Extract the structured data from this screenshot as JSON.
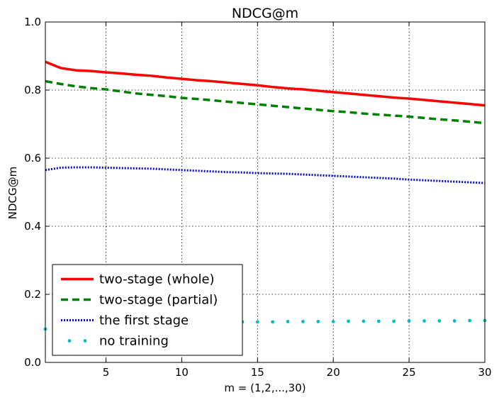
{
  "chart_data": {
    "type": "line",
    "title": "NDCG@m",
    "xlabel": "m = (1,2,...,30)",
    "ylabel": "NDCG@m",
    "xlim": [
      1,
      30
    ],
    "ylim": [
      0.0,
      1.0
    ],
    "grid": true,
    "legend_position": "lower-left",
    "x": [
      1,
      2,
      3,
      4,
      5,
      6,
      7,
      8,
      9,
      10,
      11,
      12,
      13,
      14,
      15,
      16,
      17,
      18,
      19,
      20,
      21,
      22,
      23,
      24,
      25,
      26,
      27,
      28,
      29,
      30
    ],
    "x_ticks": [
      5,
      10,
      15,
      20,
      25,
      30
    ],
    "x_tick_labels": [
      "5",
      "10",
      "15",
      "20",
      "25",
      "30"
    ],
    "y_ticks": [
      0.0,
      0.2,
      0.4,
      0.6,
      0.8,
      1.0
    ],
    "y_tick_labels": [
      "0.0",
      "0.2",
      "0.4",
      "0.6",
      "0.8",
      "1.0"
    ],
    "series": [
      {
        "name": "two-stage (whole)",
        "style": "solid",
        "color": "#ff0000",
        "values": [
          0.883,
          0.865,
          0.858,
          0.856,
          0.852,
          0.849,
          0.845,
          0.842,
          0.837,
          0.833,
          0.829,
          0.826,
          0.822,
          0.818,
          0.814,
          0.809,
          0.805,
          0.802,
          0.798,
          0.794,
          0.79,
          0.786,
          0.782,
          0.778,
          0.775,
          0.771,
          0.767,
          0.763,
          0.759,
          0.755
        ]
      },
      {
        "name": "two-stage (partial)",
        "style": "dashed",
        "color": "#008000",
        "values": [
          0.826,
          0.818,
          0.811,
          0.806,
          0.802,
          0.796,
          0.79,
          0.786,
          0.782,
          0.777,
          0.774,
          0.77,
          0.766,
          0.762,
          0.758,
          0.754,
          0.75,
          0.746,
          0.742,
          0.738,
          0.735,
          0.731,
          0.728,
          0.725,
          0.722,
          0.718,
          0.714,
          0.711,
          0.707,
          0.703
        ]
      },
      {
        "name": "the first stage",
        "style": "dotted",
        "color": "#0000cc",
        "values": [
          0.565,
          0.572,
          0.573,
          0.573,
          0.572,
          0.571,
          0.57,
          0.569,
          0.567,
          0.565,
          0.563,
          0.561,
          0.559,
          0.558,
          0.556,
          0.555,
          0.554,
          0.552,
          0.55,
          0.548,
          0.546,
          0.544,
          0.542,
          0.54,
          0.537,
          0.535,
          0.533,
          0.531,
          0.529,
          0.527
        ]
      },
      {
        "name": "no training",
        "style": "markers",
        "color": "#00bfbf",
        "values": [
          0.098,
          0.104,
          0.108,
          0.111,
          0.112,
          0.113,
          0.114,
          0.115,
          0.116,
          0.117,
          0.117,
          0.118,
          0.118,
          0.119,
          0.119,
          0.119,
          0.12,
          0.12,
          0.12,
          0.12,
          0.121,
          0.121,
          0.121,
          0.121,
          0.122,
          0.122,
          0.122,
          0.122,
          0.123,
          0.123
        ]
      }
    ]
  }
}
